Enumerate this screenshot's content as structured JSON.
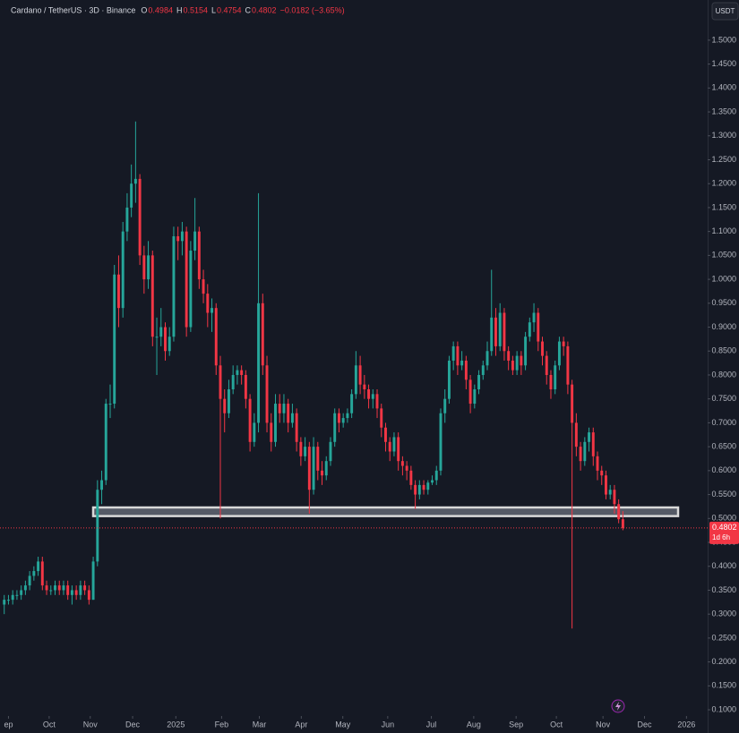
{
  "chart_data": {
    "type": "candlestick",
    "title": "Cardano / TetherUS · 3D · Binance",
    "change": "−0.0182 (−3.65%)",
    "countdown": "1d 6h",
    "currency": "USDT",
    "up_color": "#26a69a",
    "down_color": "#f23645",
    "zone_color": "#d9d9d9",
    "support_zone": [
      0.505,
      0.523
    ],
    "grid": false,
    "ylim": [
      0.087,
      1.584
    ],
    "yticks": [
      {
        "value": 0.1,
        "label": "0.1000"
      },
      {
        "value": 0.15,
        "label": "0.1500"
      },
      {
        "value": 0.2,
        "label": "0.2000"
      },
      {
        "value": 0.25,
        "label": "0.2500"
      },
      {
        "value": 0.3,
        "label": "0.3000"
      },
      {
        "value": 0.35,
        "label": "0.3500"
      },
      {
        "value": 0.4,
        "label": "0.4000"
      },
      {
        "value": 0.45,
        "label": "0.4500"
      },
      {
        "value": 0.5,
        "label": "0.5000"
      },
      {
        "value": 0.55,
        "label": "0.5500"
      },
      {
        "value": 0.6,
        "label": "0.6000"
      },
      {
        "value": 0.65,
        "label": "0.6500"
      },
      {
        "value": 0.7,
        "label": "0.7000"
      },
      {
        "value": 0.75,
        "label": "0.7500"
      },
      {
        "value": 0.8,
        "label": "0.8000"
      },
      {
        "value": 0.85,
        "label": "0.8500"
      },
      {
        "value": 0.9,
        "label": "0.9000"
      },
      {
        "value": 0.95,
        "label": "0.9500"
      },
      {
        "value": 1.0,
        "label": "1.0000"
      },
      {
        "value": 1.05,
        "label": "1.0500"
      },
      {
        "value": 1.1,
        "label": "1.1000"
      },
      {
        "value": 1.15,
        "label": "1.1500"
      },
      {
        "value": 1.2,
        "label": "1.2000"
      },
      {
        "value": 1.25,
        "label": "1.2500"
      },
      {
        "value": 1.3,
        "label": "1.3000"
      },
      {
        "value": 1.35,
        "label": "1.3500"
      },
      {
        "value": 1.4,
        "label": "1.4000"
      },
      {
        "value": 1.45,
        "label": "1.4500"
      },
      {
        "value": 1.5,
        "label": "1.5000"
      }
    ],
    "xlim": [
      -1,
      166
    ],
    "xticks": [
      {
        "value": 1,
        "label": "ep"
      },
      {
        "value": 10.6,
        "label": "Oct"
      },
      {
        "value": 20.3,
        "label": "Nov"
      },
      {
        "value": 30.3,
        "label": "Dec"
      },
      {
        "value": 40.5,
        "label": "2025"
      },
      {
        "value": 51.3,
        "label": "Feb"
      },
      {
        "value": 60.2,
        "label": "Mar"
      },
      {
        "value": 70.1,
        "label": "Apr"
      },
      {
        "value": 79.9,
        "label": "May"
      },
      {
        "value": 90.5,
        "label": "Jun"
      },
      {
        "value": 100.8,
        "label": "Jul"
      },
      {
        "value": 110.8,
        "label": "Aug"
      },
      {
        "value": 120.8,
        "label": "Sep"
      },
      {
        "value": 130.3,
        "label": "Oct"
      },
      {
        "value": 141.3,
        "label": "Nov"
      },
      {
        "value": 151.1,
        "label": "Dec"
      },
      {
        "value": 161,
        "label": "2026"
      }
    ],
    "candles": [
      [
        0.32,
        0.34,
        0.3,
        0.33
      ],
      [
        0.33,
        0.34,
        0.32,
        0.33
      ],
      [
        0.33,
        0.35,
        0.32,
        0.34
      ],
      [
        0.34,
        0.35,
        0.33,
        0.34
      ],
      [
        0.34,
        0.36,
        0.33,
        0.35
      ],
      [
        0.35,
        0.37,
        0.34,
        0.36
      ],
      [
        0.36,
        0.39,
        0.35,
        0.38
      ],
      [
        0.38,
        0.4,
        0.37,
        0.39
      ],
      [
        0.39,
        0.42,
        0.38,
        0.41
      ],
      [
        0.41,
        0.42,
        0.35,
        0.36
      ],
      [
        0.36,
        0.37,
        0.34,
        0.35
      ],
      [
        0.35,
        0.36,
        0.34,
        0.35
      ],
      [
        0.35,
        0.37,
        0.34,
        0.36
      ],
      [
        0.36,
        0.37,
        0.34,
        0.35
      ],
      [
        0.35,
        0.37,
        0.34,
        0.36
      ],
      [
        0.36,
        0.37,
        0.33,
        0.34
      ],
      [
        0.34,
        0.36,
        0.32,
        0.35
      ],
      [
        0.35,
        0.36,
        0.33,
        0.34
      ],
      [
        0.34,
        0.37,
        0.33,
        0.36
      ],
      [
        0.36,
        0.37,
        0.34,
        0.35
      ],
      [
        0.35,
        0.36,
        0.32,
        0.33
      ],
      [
        0.33,
        0.42,
        0.33,
        0.41
      ],
      [
        0.41,
        0.58,
        0.4,
        0.56
      ],
      [
        0.56,
        0.6,
        0.53,
        0.58
      ],
      [
        0.58,
        0.75,
        0.57,
        0.74
      ],
      [
        0.74,
        0.78,
        0.71,
        0.74
      ],
      [
        0.74,
        1.03,
        0.73,
        1.01
      ],
      [
        1.01,
        1.05,
        0.9,
        0.94
      ],
      [
        0.94,
        1.12,
        0.92,
        1.1
      ],
      [
        1.1,
        1.18,
        1.08,
        1.15
      ],
      [
        1.15,
        1.24,
        1.13,
        1.2
      ],
      [
        1.2,
        1.33,
        1.16,
        1.21
      ],
      [
        1.21,
        1.22,
        1.03,
        1.05
      ],
      [
        1.05,
        1.07,
        0.97,
        1.0
      ],
      [
        1.0,
        1.08,
        0.98,
        1.05
      ],
      [
        1.05,
        1.06,
        0.86,
        0.88
      ],
      [
        0.88,
        0.92,
        0.8,
        0.88
      ],
      [
        0.88,
        0.94,
        0.86,
        0.9
      ],
      [
        0.9,
        0.91,
        0.83,
        0.85
      ],
      [
        0.85,
        0.9,
        0.84,
        0.88
      ],
      [
        0.88,
        1.11,
        0.87,
        1.09
      ],
      [
        1.09,
        1.11,
        1.04,
        1.08
      ],
      [
        1.08,
        1.12,
        1.05,
        1.1
      ],
      [
        1.1,
        1.11,
        0.88,
        0.9
      ],
      [
        0.9,
        1.08,
        0.89,
        1.06
      ],
      [
        1.06,
        1.17,
        1.04,
        1.1
      ],
      [
        1.1,
        1.11,
        0.98,
        1.0
      ],
      [
        1.0,
        1.02,
        0.95,
        0.97
      ],
      [
        0.97,
        0.99,
        0.9,
        0.93
      ],
      [
        0.93,
        0.96,
        0.89,
        0.94
      ],
      [
        0.94,
        0.95,
        0.8,
        0.82
      ],
      [
        0.82,
        0.84,
        0.5,
        0.75
      ],
      [
        0.75,
        0.77,
        0.68,
        0.72
      ],
      [
        0.72,
        0.79,
        0.71,
        0.77
      ],
      [
        0.77,
        0.82,
        0.76,
        0.8
      ],
      [
        0.8,
        0.82,
        0.78,
        0.81
      ],
      [
        0.81,
        0.82,
        0.78,
        0.8
      ],
      [
        0.8,
        0.81,
        0.73,
        0.75
      ],
      [
        0.75,
        0.76,
        0.64,
        0.66
      ],
      [
        0.66,
        0.72,
        0.65,
        0.7
      ],
      [
        0.7,
        1.18,
        0.68,
        0.95
      ],
      [
        0.95,
        0.97,
        0.8,
        0.82
      ],
      [
        0.82,
        0.84,
        0.68,
        0.7
      ],
      [
        0.7,
        0.72,
        0.64,
        0.66
      ],
      [
        0.66,
        0.76,
        0.65,
        0.74
      ],
      [
        0.74,
        0.76,
        0.7,
        0.72
      ],
      [
        0.72,
        0.76,
        0.7,
        0.74
      ],
      [
        0.74,
        0.75,
        0.68,
        0.7
      ],
      [
        0.7,
        0.74,
        0.69,
        0.72
      ],
      [
        0.72,
        0.73,
        0.64,
        0.66
      ],
      [
        0.66,
        0.67,
        0.61,
        0.63
      ],
      [
        0.63,
        0.67,
        0.62,
        0.65
      ],
      [
        0.65,
        0.66,
        0.51,
        0.56
      ],
      [
        0.56,
        0.67,
        0.55,
        0.65
      ],
      [
        0.65,
        0.66,
        0.58,
        0.6
      ],
      [
        0.6,
        0.62,
        0.57,
        0.59
      ],
      [
        0.59,
        0.63,
        0.58,
        0.62
      ],
      [
        0.62,
        0.67,
        0.61,
        0.66
      ],
      [
        0.66,
        0.73,
        0.65,
        0.72
      ],
      [
        0.72,
        0.73,
        0.68,
        0.7
      ],
      [
        0.7,
        0.72,
        0.69,
        0.71
      ],
      [
        0.71,
        0.73,
        0.7,
        0.72
      ],
      [
        0.72,
        0.77,
        0.71,
        0.76
      ],
      [
        0.76,
        0.85,
        0.75,
        0.82
      ],
      [
        0.82,
        0.84,
        0.76,
        0.78
      ],
      [
        0.78,
        0.8,
        0.75,
        0.77
      ],
      [
        0.77,
        0.78,
        0.73,
        0.75
      ],
      [
        0.75,
        0.77,
        0.73,
        0.76
      ],
      [
        0.76,
        0.77,
        0.71,
        0.73
      ],
      [
        0.73,
        0.74,
        0.67,
        0.69
      ],
      [
        0.69,
        0.7,
        0.64,
        0.66
      ],
      [
        0.66,
        0.67,
        0.62,
        0.64
      ],
      [
        0.64,
        0.68,
        0.63,
        0.67
      ],
      [
        0.67,
        0.68,
        0.6,
        0.62
      ],
      [
        0.62,
        0.63,
        0.59,
        0.61
      ],
      [
        0.61,
        0.62,
        0.58,
        0.6
      ],
      [
        0.6,
        0.61,
        0.56,
        0.57
      ],
      [
        0.57,
        0.58,
        0.52,
        0.55
      ],
      [
        0.55,
        0.58,
        0.54,
        0.57
      ],
      [
        0.57,
        0.58,
        0.55,
        0.56
      ],
      [
        0.56,
        0.58,
        0.55,
        0.575
      ],
      [
        0.575,
        0.59,
        0.57,
        0.58
      ],
      [
        0.58,
        0.61,
        0.57,
        0.6
      ],
      [
        0.6,
        0.73,
        0.59,
        0.72
      ],
      [
        0.72,
        0.77,
        0.7,
        0.75
      ],
      [
        0.75,
        0.84,
        0.74,
        0.83
      ],
      [
        0.83,
        0.87,
        0.81,
        0.86
      ],
      [
        0.86,
        0.87,
        0.8,
        0.82
      ],
      [
        0.82,
        0.85,
        0.81,
        0.83
      ],
      [
        0.83,
        0.84,
        0.77,
        0.79
      ],
      [
        0.79,
        0.8,
        0.72,
        0.74
      ],
      [
        0.74,
        0.78,
        0.73,
        0.77
      ],
      [
        0.77,
        0.81,
        0.76,
        0.8
      ],
      [
        0.8,
        0.83,
        0.79,
        0.82
      ],
      [
        0.82,
        0.87,
        0.81,
        0.85
      ],
      [
        0.85,
        1.02,
        0.84,
        0.92
      ],
      [
        0.92,
        0.94,
        0.84,
        0.86
      ],
      [
        0.86,
        0.95,
        0.85,
        0.93
      ],
      [
        0.93,
        0.94,
        0.83,
        0.85
      ],
      [
        0.85,
        0.86,
        0.81,
        0.83
      ],
      [
        0.83,
        0.84,
        0.8,
        0.81
      ],
      [
        0.81,
        0.85,
        0.8,
        0.84
      ],
      [
        0.84,
        0.85,
        0.8,
        0.82
      ],
      [
        0.82,
        0.89,
        0.81,
        0.88
      ],
      [
        0.88,
        0.92,
        0.87,
        0.91
      ],
      [
        0.91,
        0.95,
        0.89,
        0.93
      ],
      [
        0.93,
        0.94,
        0.85,
        0.87
      ],
      [
        0.87,
        0.88,
        0.82,
        0.84
      ],
      [
        0.84,
        0.85,
        0.78,
        0.8
      ],
      [
        0.8,
        0.81,
        0.75,
        0.77
      ],
      [
        0.77,
        0.83,
        0.76,
        0.82
      ],
      [
        0.82,
        0.88,
        0.81,
        0.87
      ],
      [
        0.87,
        0.88,
        0.84,
        0.86
      ],
      [
        0.86,
        0.87,
        0.76,
        0.78
      ],
      [
        0.78,
        0.79,
        0.27,
        0.7
      ],
      [
        0.7,
        0.72,
        0.63,
        0.65
      ],
      [
        0.65,
        0.66,
        0.6,
        0.62
      ],
      [
        0.62,
        0.67,
        0.61,
        0.66
      ],
      [
        0.66,
        0.69,
        0.64,
        0.68
      ],
      [
        0.68,
        0.69,
        0.61,
        0.63
      ],
      [
        0.63,
        0.64,
        0.58,
        0.6
      ],
      [
        0.6,
        0.61,
        0.57,
        0.59
      ],
      [
        0.59,
        0.6,
        0.54,
        0.55
      ],
      [
        0.55,
        0.57,
        0.54,
        0.56
      ],
      [
        0.56,
        0.57,
        0.51,
        0.53
      ],
      [
        0.53,
        0.54,
        0.49,
        0.4984
      ],
      [
        0.4984,
        0.5154,
        0.4754,
        0.4802
      ]
    ]
  }
}
